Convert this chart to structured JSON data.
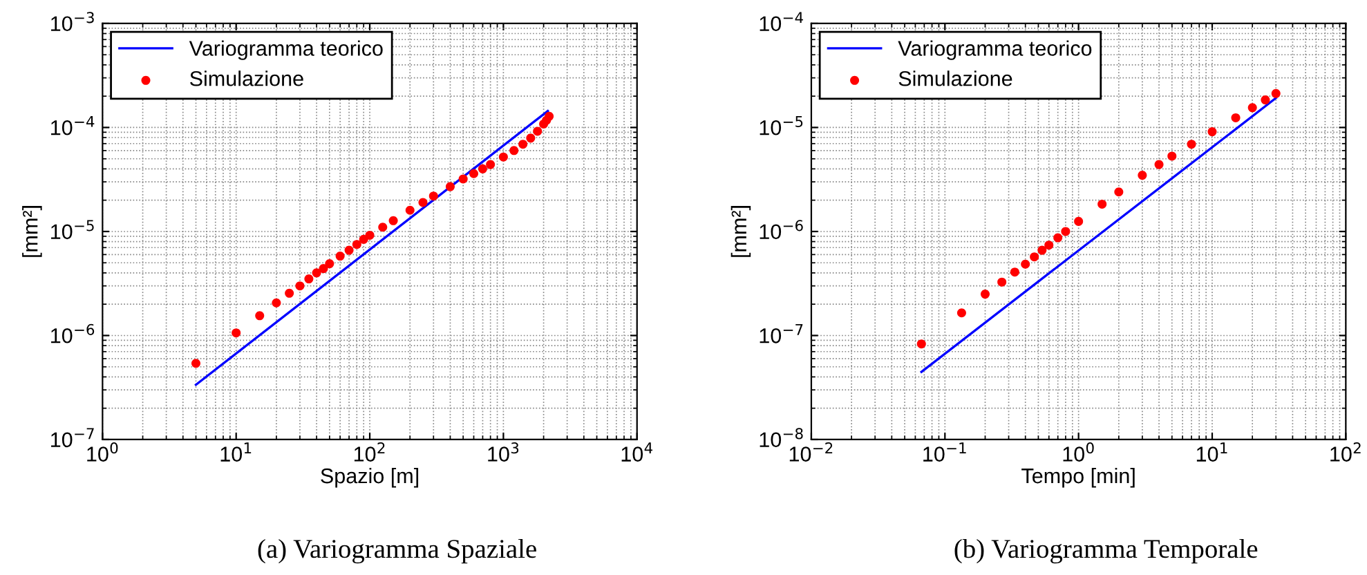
{
  "chart_data": [
    {
      "type": "line",
      "xlabel": "Spazio [m]",
      "ylabel": "[mm²]",
      "log": "xy",
      "grid": true,
      "legend": "top left",
      "xlim": [
        1,
        10000
      ],
      "ylim": [
        1e-07,
        0.001
      ],
      "xticks": [
        {
          "value": 1,
          "label": "10$^{0}$"
        },
        {
          "value": 10,
          "label": "10$^{1}$"
        },
        {
          "value": 100,
          "label": "10$^{2}$"
        },
        {
          "value": 1000,
          "label": "10$^{3}$"
        },
        {
          "value": 10000,
          "label": "10$^{4}$"
        }
      ],
      "yticks": [
        {
          "value": 1e-07,
          "label": "10$^{−7}$"
        },
        {
          "value": 1e-06,
          "label": "10$^{−6}$"
        },
        {
          "value": 1e-05,
          "label": "10$^{−5}$"
        },
        {
          "value": 0.0001,
          "label": "10$^{−4}$"
        },
        {
          "value": 0.001,
          "label": "10$^{−3}$"
        }
      ],
      "series": [
        {
          "name": "Variogramma teorico",
          "color": "#0000ff",
          "marker": "none",
          "line_style": "solid",
          "x": [
            5,
            2150
          ],
          "values": [
            3.36e-07,
            0.000144
          ]
        },
        {
          "name": "Simulazione",
          "type": "scatter",
          "color": "#ff0000",
          "marker": "circle",
          "x": [
            5,
            10,
            15,
            20,
            25,
            30,
            35,
            40,
            45,
            50,
            60,
            70,
            80,
            90,
            100,
            125,
            150,
            200,
            250,
            300,
            400,
            500,
            600,
            700,
            800,
            1000,
            1200,
            1400,
            1600,
            1800,
            2000,
            2100,
            2200
          ],
          "values": [
            5.4e-07,
            1.06e-06,
            1.55e-06,
            2.06e-06,
            2.55e-06,
            3e-06,
            3.5e-06,
            4e-06,
            4.4e-06,
            4.9e-06,
            5.8e-06,
            6.6e-06,
            7.5e-06,
            8.4e-06,
            9.2e-06,
            1.1e-05,
            1.27e-05,
            1.6e-05,
            1.9e-05,
            2.19e-05,
            2.7e-05,
            3.2e-05,
            3.6e-05,
            4e-05,
            4.4e-05,
            5.2e-05,
            6e-05,
            6.9e-05,
            7.9e-05,
            9.2e-05,
            0.000108,
            0.000117,
            0.000128
          ]
        }
      ],
      "annotations": [
        "(a) Variogramma Spaziale"
      ]
    },
    {
      "type": "line",
      "xlabel": "Tempo [min]",
      "ylabel": "[mm²]",
      "log": "xy",
      "grid": true,
      "legend": "top left",
      "xlim": [
        0.01,
        100
      ],
      "ylim": [
        1e-08,
        0.0001
      ],
      "xticks": [
        {
          "value": 0.01,
          "label": "10$^{−2}$"
        },
        {
          "value": 0.1,
          "label": "10$^{−1}$"
        },
        {
          "value": 1,
          "label": "10$^{0}$"
        },
        {
          "value": 10,
          "label": "10$^{1}$"
        },
        {
          "value": 100,
          "label": "10$^{2}$"
        }
      ],
      "yticks": [
        {
          "value": 1e-08,
          "label": "10$^{−8}$"
        },
        {
          "value": 1e-07,
          "label": "10$^{−7}$"
        },
        {
          "value": 1e-06,
          "label": "10$^{−6}$"
        },
        {
          "value": 1e-05,
          "label": "10$^{−5}$"
        },
        {
          "value": 0.0001,
          "label": "10$^{−4}$"
        }
      ],
      "series": [
        {
          "name": "Variogramma teorico",
          "color": "#0000ff",
          "marker": "none",
          "line_style": "solid",
          "x": [
            0.0667,
            30
          ],
          "values": [
            4.47e-08,
            1.92e-05
          ]
        },
        {
          "name": "Simulazione",
          "type": "scatter",
          "color": "#ff0000",
          "marker": "circle",
          "x": [
            0.0667,
            0.1333,
            0.2,
            0.2667,
            0.3333,
            0.4,
            0.4667,
            0.5333,
            0.6,
            0.7,
            0.8,
            1,
            1.5,
            2,
            3,
            4,
            5,
            7,
            10,
            15,
            20,
            25,
            30
          ],
          "values": [
            8.3e-08,
            1.65e-07,
            2.5e-07,
            3.26e-07,
            4.07e-07,
            4.85e-07,
            5.7e-07,
            6.6e-07,
            7.4e-07,
            8.7e-07,
            1e-06,
            1.25e-06,
            1.83e-06,
            2.4e-06,
            3.47e-06,
            4.4e-06,
            5.3e-06,
            6.9e-06,
            9.1e-06,
            1.24e-05,
            1.55e-05,
            1.84e-05,
            2.12e-05
          ]
        }
      ],
      "annotations": [
        "(b) Variogramma Temporale"
      ]
    }
  ]
}
